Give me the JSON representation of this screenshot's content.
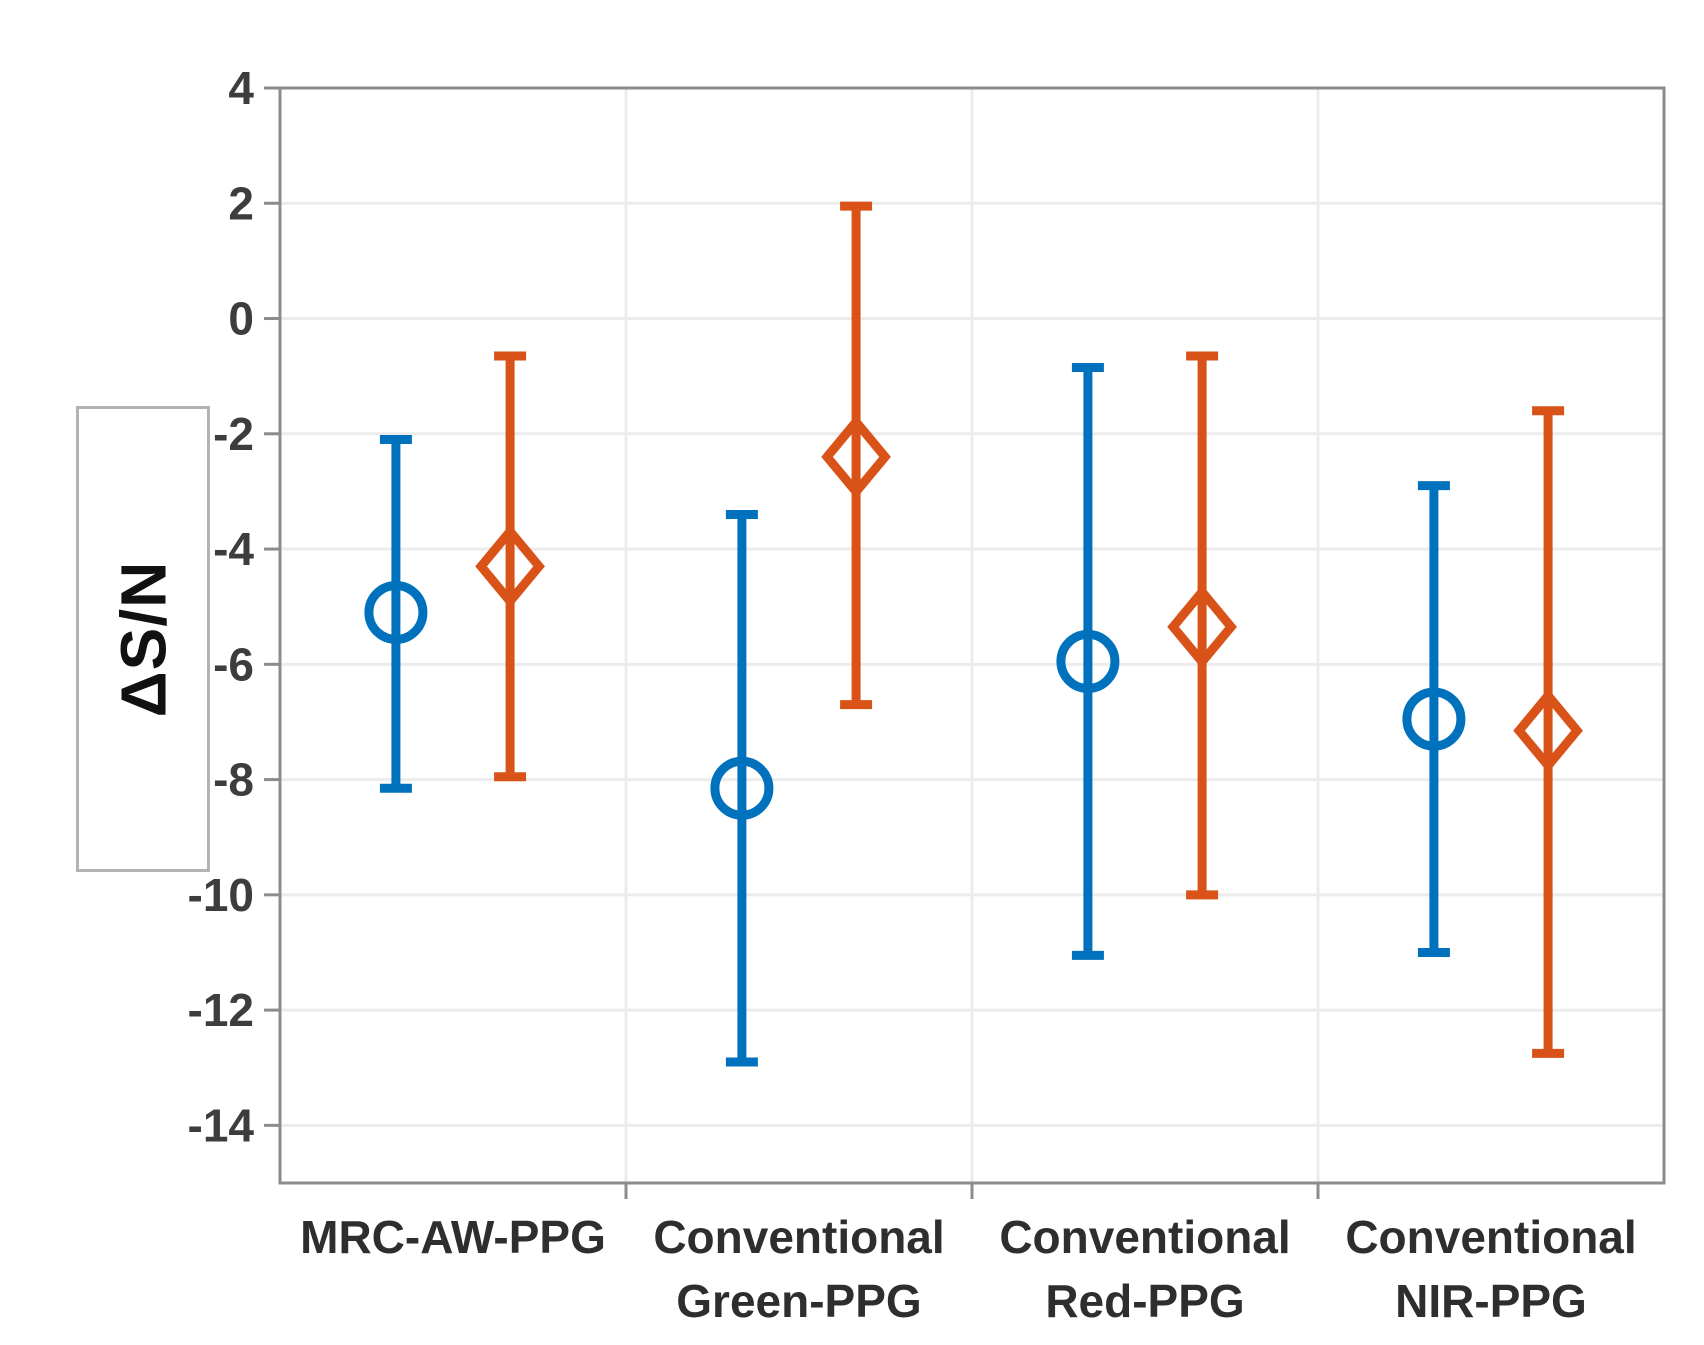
{
  "chart_data": {
    "type": "errorbar",
    "title": "",
    "ylabel": "ΔS/N",
    "xlabel": "",
    "ylim": [
      -15,
      4
    ],
    "yticks": [
      4,
      2,
      0,
      -2,
      -4,
      -6,
      -8,
      -10,
      -12,
      -14
    ],
    "grid": true,
    "legend": "none",
    "categories": [
      [
        "MRC-AW-PPG"
      ],
      [
        "Conventional",
        "Green-PPG"
      ],
      [
        "Conventional",
        "Red-PPG"
      ],
      [
        "Conventional",
        "NIR-PPG"
      ]
    ],
    "series": [
      {
        "name": "blue-circle-series",
        "marker": "circle",
        "color": "#0072BD",
        "offset": -0.165,
        "means": [
          -5.1,
          -8.15,
          -5.95,
          -6.95
        ],
        "upper": [
          -2.1,
          -3.4,
          -0.85,
          -2.9
        ],
        "lower": [
          -8.15,
          -12.9,
          -11.05,
          -11.0
        ]
      },
      {
        "name": "orange-diamond-series",
        "marker": "diamond",
        "color": "#D95319",
        "offset": 0.165,
        "means": [
          -4.3,
          -2.4,
          -5.35,
          -7.15
        ],
        "upper": [
          -0.65,
          1.95,
          -0.65,
          -1.6
        ],
        "lower": [
          -7.95,
          -6.7,
          -10.0,
          -12.75
        ]
      }
    ],
    "colors": {
      "axis": "#8c8c8c",
      "grid": "#ececec",
      "tick_label": "#3d3d3d",
      "category_label": "#2e2e2e"
    }
  }
}
